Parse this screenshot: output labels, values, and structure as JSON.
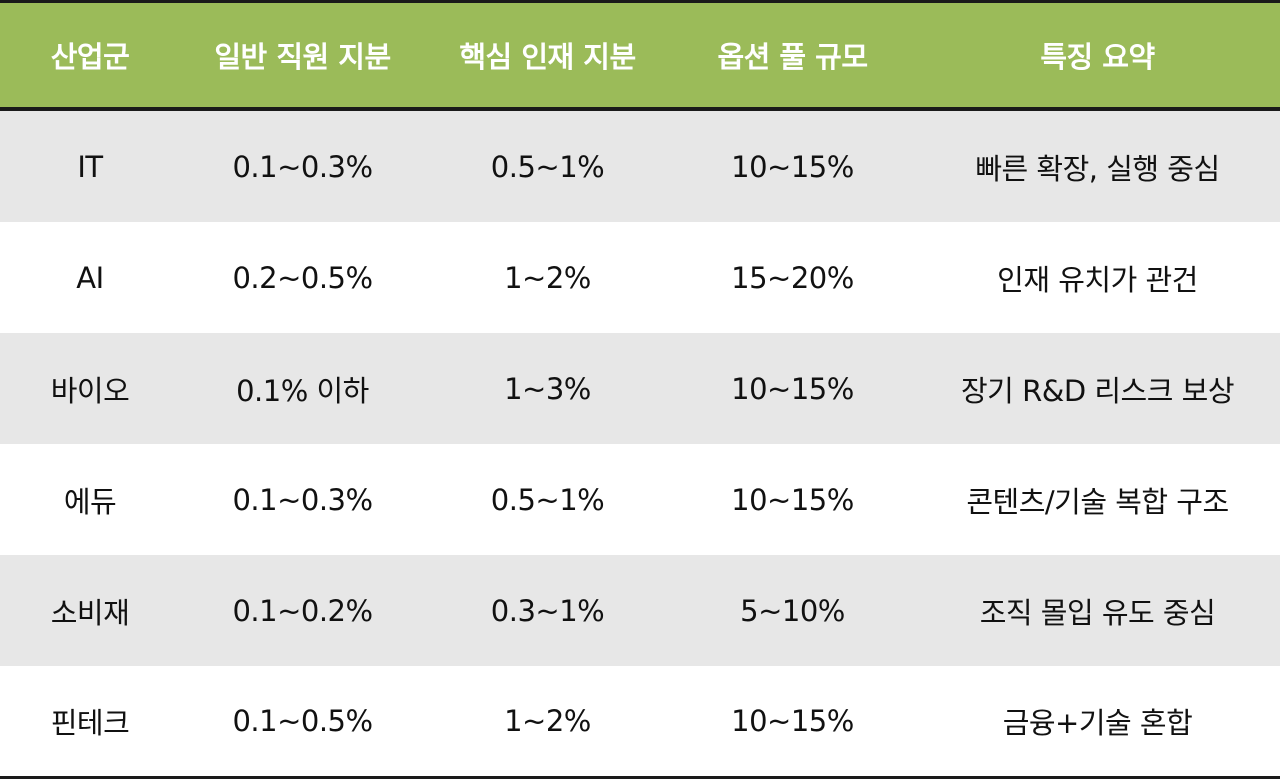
{
  "table": {
    "headers": [
      "산업군",
      "일반 직원 지분",
      "핵심 인재 지분",
      "옵션 풀 규모",
      "특징 요약"
    ],
    "rows": [
      [
        "IT",
        "0.1~0.3%",
        "0.5~1%",
        "10~15%",
        "빠른 확장, 실행 중심"
      ],
      [
        "AI",
        "0.2~0.5%",
        "1~2%",
        "15~20%",
        "인재 유치가 관건"
      ],
      [
        "바이오",
        "0.1% 이하",
        "1~3%",
        "10~15%",
        "장기 R&D 리스크 보상"
      ],
      [
        "에듀",
        "0.1~0.3%",
        "0.5~1%",
        "10~15%",
        "콘텐츠/기술 복합 구조"
      ],
      [
        "소비재",
        "0.1~0.2%",
        "0.3~1%",
        "5~10%",
        "조직 몰입 유도 중심"
      ],
      [
        "핀테크",
        "0.1~0.5%",
        "1~2%",
        "10~15%",
        "금융+기술 혼합"
      ]
    ],
    "colors": {
      "header_bg": "#9bbb59",
      "header_text": "#ffffff",
      "shaded_row": "#e7e7e7",
      "plain_row": "#ffffff",
      "rule": "#1a1a1a"
    }
  }
}
